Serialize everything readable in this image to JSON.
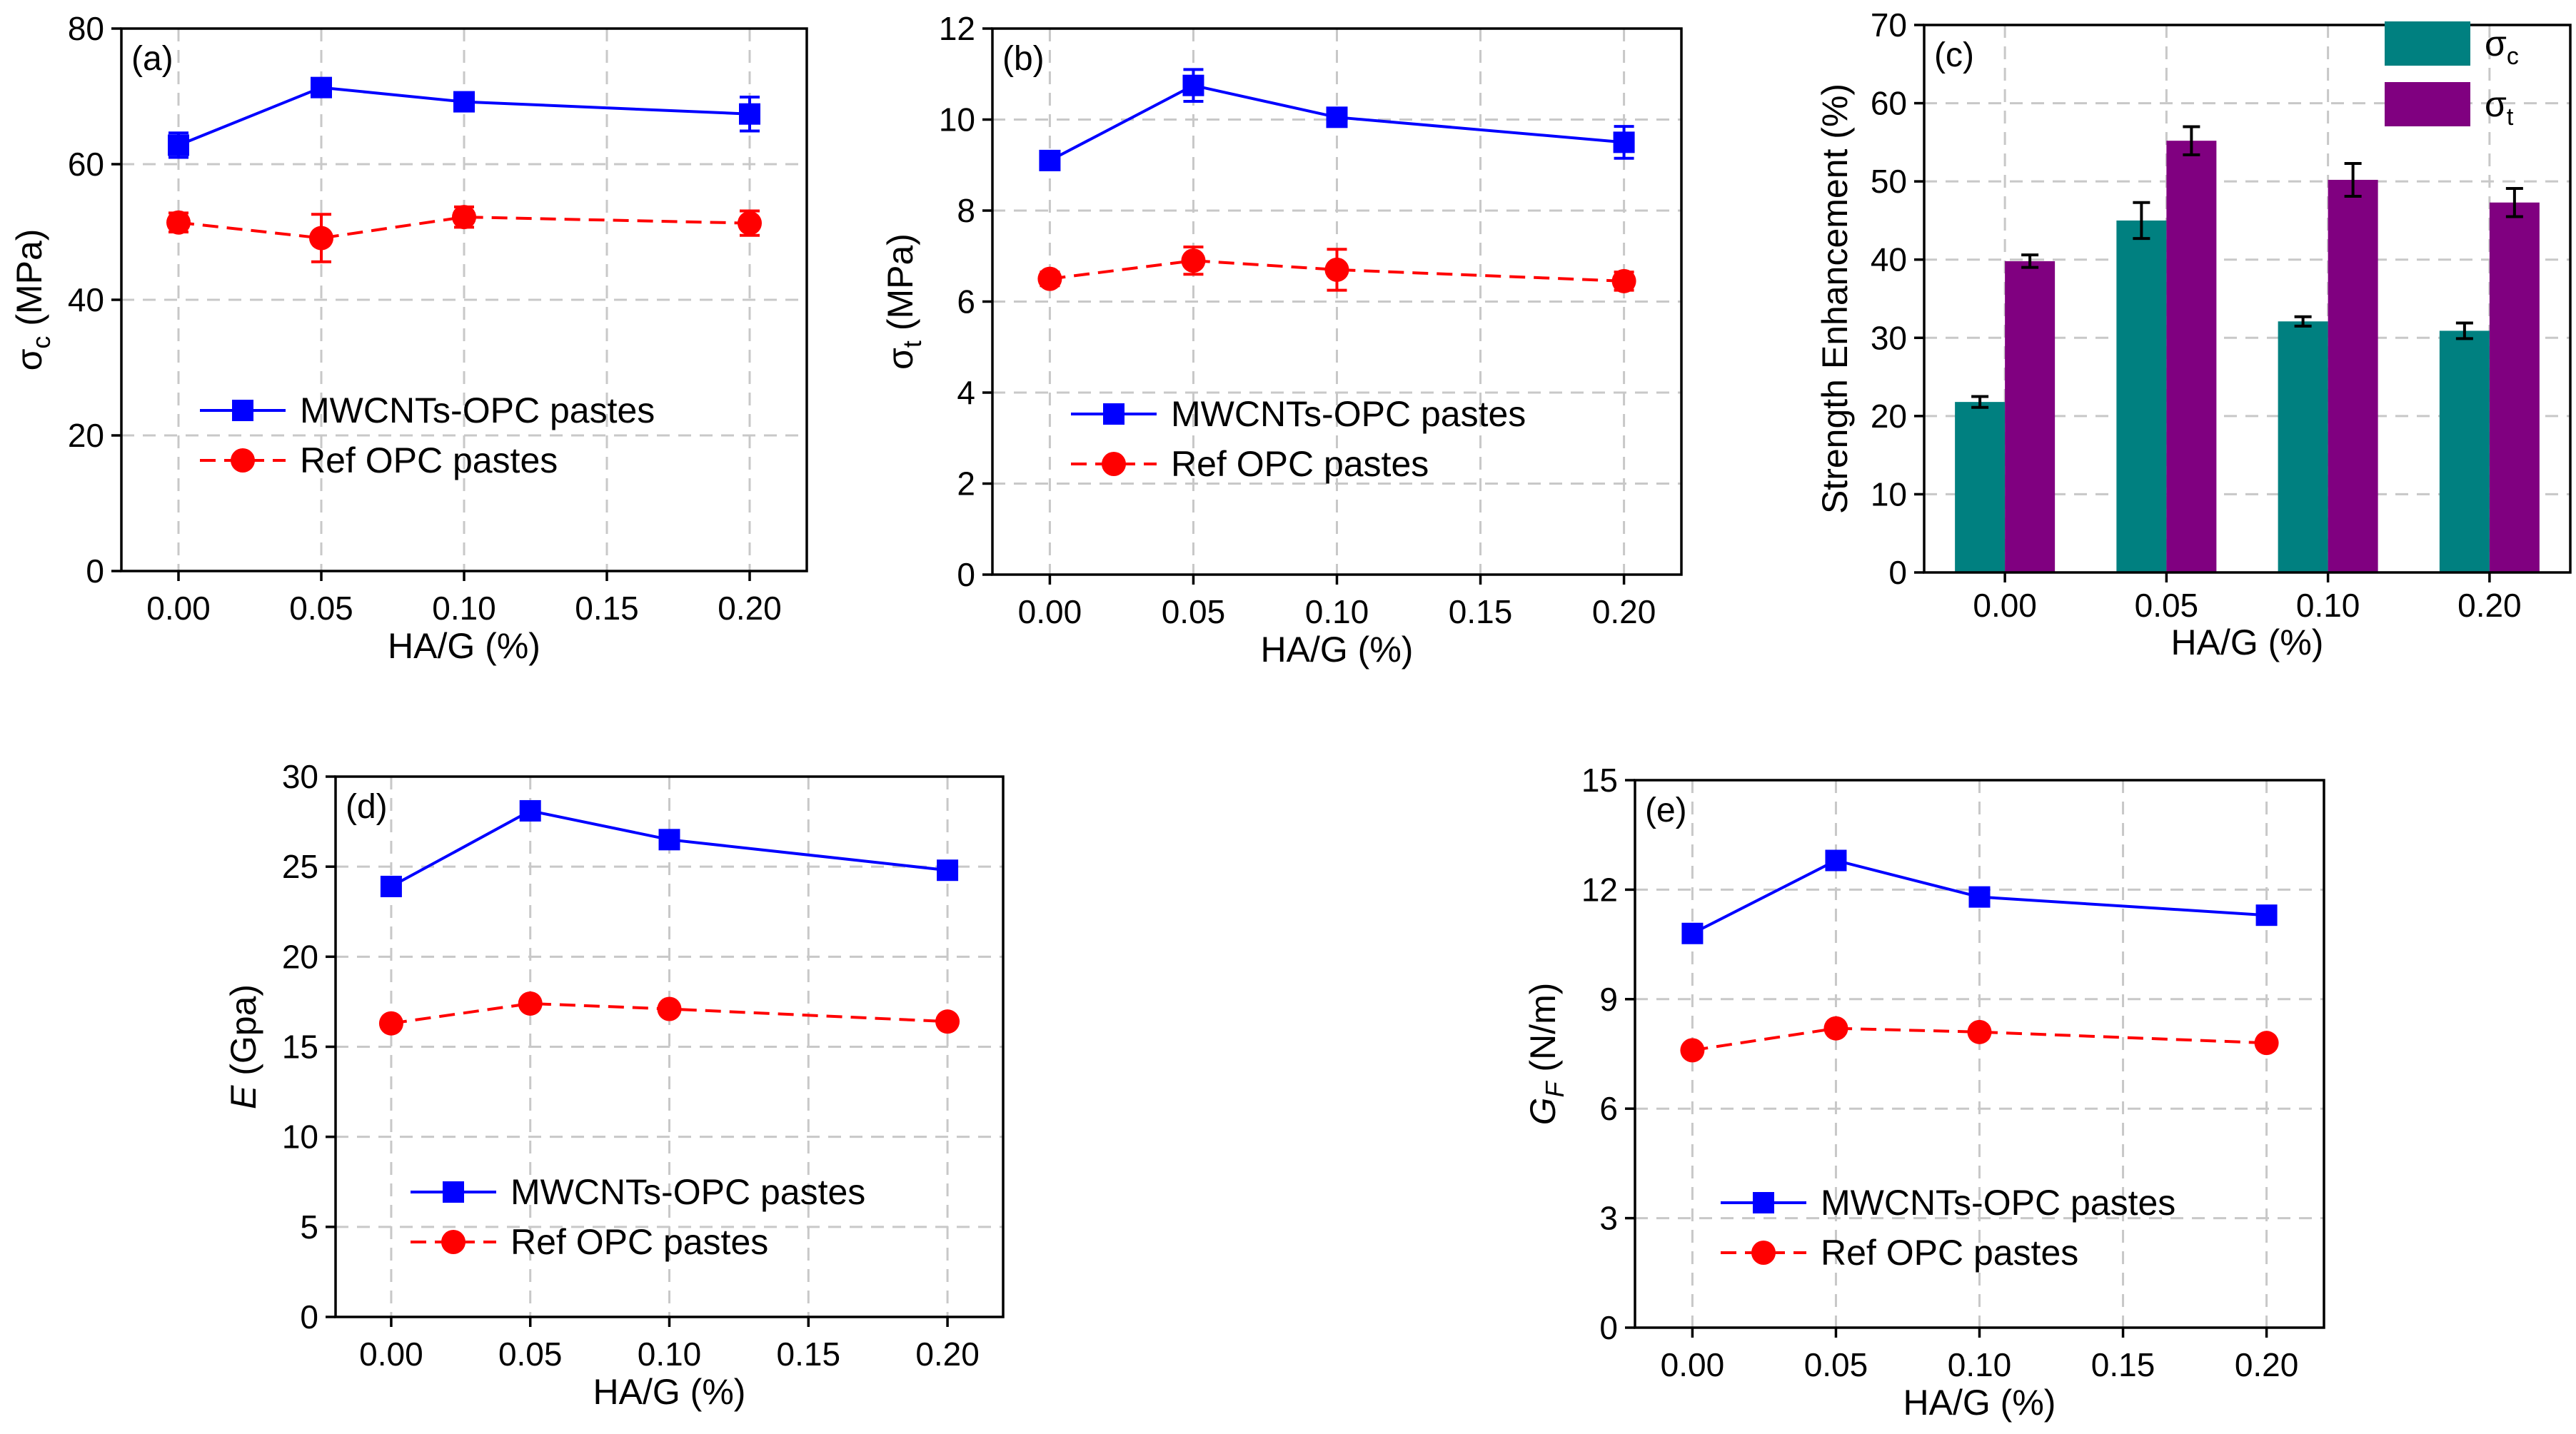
{
  "colors": {
    "mwcnt": "#0000ff",
    "ref": "#ff0000",
    "bar_sc": "#008080",
    "bar_st": "#800080",
    "grid": "#c8c8c8",
    "axis": "#000000"
  },
  "chart_data": [
    {
      "id": "a",
      "type": "line",
      "panel_label": "(a)",
      "xlabel": "HA/G (%)",
      "ylabel_main": "σ",
      "ylabel_sub": "c",
      "ylabel_unit": " (MPa)",
      "xlim": [
        -0.02,
        0.22
      ],
      "ylim": [
        0,
        80
      ],
      "xticks": [
        0.0,
        0.05,
        0.1,
        0.15,
        0.2
      ],
      "xtick_labels": [
        "0.00",
        "0.05",
        "0.10",
        "0.15",
        "0.20"
      ],
      "yticks": [
        0,
        20,
        40,
        60,
        80
      ],
      "ytick_labels": [
        "0",
        "20",
        "40",
        "60",
        "80"
      ],
      "grid": true,
      "legend_position": "bottom-right",
      "series": [
        {
          "name": "MWCNTs-OPC pastes",
          "marker": "square",
          "dash": false,
          "color_key": "mwcnt",
          "x": [
            0.0,
            0.05,
            0.1,
            0.2
          ],
          "y": [
            62.8,
            71.3,
            69.2,
            67.4
          ],
          "err": [
            1.8,
            1.2,
            1.2,
            2.5
          ]
        },
        {
          "name": "Ref OPC pastes",
          "marker": "circle",
          "dash": true,
          "color_key": "ref",
          "x": [
            0.0,
            0.05,
            0.1,
            0.2
          ],
          "y": [
            51.4,
            49.1,
            52.2,
            51.3
          ],
          "err": [
            1.4,
            3.5,
            1.5,
            1.8
          ]
        }
      ]
    },
    {
      "id": "b",
      "type": "line",
      "panel_label": "(b)",
      "xlabel": "HA/G (%)",
      "ylabel_main": "σ",
      "ylabel_sub": "t",
      "ylabel_unit": " (MPa)",
      "xlim": [
        -0.02,
        0.22
      ],
      "ylim": [
        0,
        12
      ],
      "xticks": [
        0.0,
        0.05,
        0.1,
        0.15,
        0.2
      ],
      "xtick_labels": [
        "0.00",
        "0.05",
        "0.10",
        "0.15",
        "0.20"
      ],
      "yticks": [
        0,
        2,
        4,
        6,
        8,
        10,
        12
      ],
      "ytick_labels": [
        "0",
        "2",
        "4",
        "6",
        "8",
        "10",
        "12"
      ],
      "grid": true,
      "legend_position": "bottom-right",
      "series": [
        {
          "name": "MWCNTs-OPC pastes",
          "marker": "square",
          "dash": false,
          "color_key": "mwcnt",
          "x": [
            0.0,
            0.05,
            0.1,
            0.2
          ],
          "y": [
            9.1,
            10.75,
            10.05,
            9.5
          ],
          "err": [
            0.15,
            0.35,
            0.15,
            0.35
          ]
        },
        {
          "name": "Ref OPC pastes",
          "marker": "circle",
          "dash": true,
          "color_key": "ref",
          "x": [
            0.0,
            0.05,
            0.1,
            0.2
          ],
          "y": [
            6.5,
            6.9,
            6.7,
            6.45
          ],
          "err": [
            0.15,
            0.3,
            0.45,
            0.2
          ]
        }
      ]
    },
    {
      "id": "c",
      "type": "bar",
      "panel_label": "(c)",
      "xlabel": "HA/G (%)",
      "ylabel": "Strength Enhancement (%)",
      "categories": [
        "0.00",
        "0.05",
        "0.10",
        "0.20"
      ],
      "ylim": [
        0,
        70
      ],
      "yticks": [
        0,
        10,
        20,
        30,
        40,
        50,
        60,
        70
      ],
      "ytick_labels": [
        "0",
        "10",
        "20",
        "30",
        "40",
        "50",
        "60",
        "70"
      ],
      "grid": true,
      "legend_position": "top-right",
      "series": [
        {
          "name_main": "σ",
          "name_sub": "c",
          "color_key": "bar_sc",
          "values": [
            21.8,
            45.0,
            32.1,
            30.9
          ],
          "err": [
            0.7,
            2.3,
            0.6,
            1.0
          ]
        },
        {
          "name_main": "σ",
          "name_sub": "t",
          "color_key": "bar_st",
          "values": [
            39.8,
            55.2,
            50.2,
            47.3
          ],
          "err": [
            0.8,
            1.8,
            2.1,
            1.8
          ]
        }
      ]
    },
    {
      "id": "d",
      "type": "line",
      "panel_label": "(d)",
      "xlabel": "HA/G (%)",
      "ylabel_main": "E",
      "ylabel_sub": "",
      "ylabel_unit": " (Gpa)",
      "xlim": [
        -0.02,
        0.22
      ],
      "ylim": [
        0,
        30
      ],
      "xticks": [
        0.0,
        0.05,
        0.1,
        0.15,
        0.2
      ],
      "xtick_labels": [
        "0.00",
        "0.05",
        "0.10",
        "0.15",
        "0.20"
      ],
      "yticks": [
        0,
        5,
        10,
        15,
        20,
        25,
        30
      ],
      "ytick_labels": [
        "0",
        "5",
        "10",
        "15",
        "20",
        "25",
        "30"
      ],
      "grid": true,
      "legend_position": "bottom-right",
      "series": [
        {
          "name": "MWCNTs-OPC pastes",
          "marker": "square",
          "dash": false,
          "color_key": "mwcnt",
          "x": [
            0.0,
            0.05,
            0.1,
            0.2
          ],
          "y": [
            23.9,
            28.1,
            26.5,
            24.8
          ],
          "err": []
        },
        {
          "name": "Ref OPC pastes",
          "marker": "circle",
          "dash": true,
          "color_key": "ref",
          "x": [
            0.0,
            0.05,
            0.1,
            0.2
          ],
          "y": [
            16.3,
            17.4,
            17.1,
            16.4
          ],
          "err": []
        }
      ]
    },
    {
      "id": "e",
      "type": "line",
      "panel_label": "(e)",
      "xlabel": "HA/G (%)",
      "ylabel_main": "G",
      "ylabel_sub": "F",
      "ylabel_unit": " (N/m)",
      "xlim": [
        -0.02,
        0.22
      ],
      "ylim": [
        0,
        15
      ],
      "xticks": [
        0.0,
        0.05,
        0.1,
        0.15,
        0.2
      ],
      "xtick_labels": [
        "0.00",
        "0.05",
        "0.10",
        "0.15",
        "0.20"
      ],
      "yticks": [
        0,
        3,
        6,
        9,
        12,
        15
      ],
      "ytick_labels": [
        "0",
        "3",
        "6",
        "9",
        "12",
        "15"
      ],
      "grid": true,
      "legend_position": "bottom-right",
      "series": [
        {
          "name": "MWCNTs-OPC pastes",
          "marker": "square",
          "dash": false,
          "color_key": "mwcnt",
          "x": [
            0.0,
            0.05,
            0.1,
            0.2
          ],
          "y": [
            10.8,
            12.8,
            11.8,
            11.3
          ],
          "err": []
        },
        {
          "name": "Ref OPC pastes",
          "marker": "circle",
          "dash": true,
          "color_key": "ref",
          "x": [
            0.0,
            0.05,
            0.1,
            0.2
          ],
          "y": [
            7.6,
            8.2,
            8.1,
            7.8
          ],
          "err": []
        }
      ]
    }
  ]
}
